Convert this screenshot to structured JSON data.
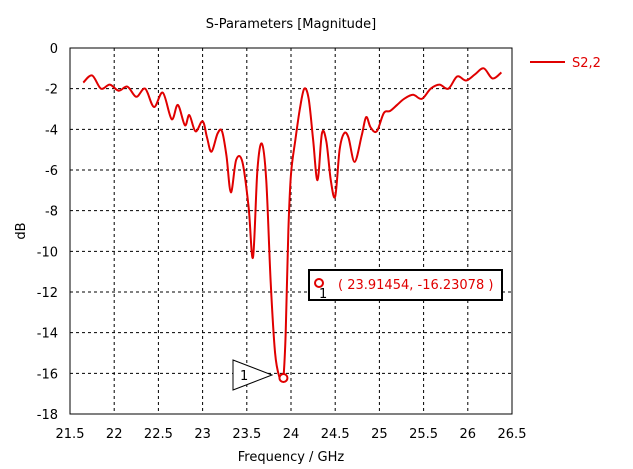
{
  "chart_data": {
    "type": "line",
    "title": "S-Parameters [Magnitude]",
    "xlabel": "Frequency / GHz",
    "ylabel": "dB",
    "xlim": [
      21.5,
      26.5
    ],
    "ylim": [
      -18,
      0
    ],
    "xticks": [
      "21.5",
      "22",
      "22.5",
      "23",
      "23.5",
      "24",
      "24.5",
      "25",
      "25.5",
      "26",
      "26.5"
    ],
    "yticks": [
      "0",
      "-2",
      "-4",
      "-6",
      "-8",
      "-10",
      "-12",
      "-14",
      "-16",
      "-18"
    ],
    "grid": true,
    "legend_position": "top-right",
    "series": [
      {
        "name": "S2,2",
        "color": "#e00000",
        "x": [
          21.65,
          21.75,
          21.85,
          21.95,
          22.05,
          22.15,
          22.25,
          22.35,
          22.45,
          22.55,
          22.65,
          22.72,
          22.8,
          22.85,
          22.92,
          23.0,
          23.05,
          23.1,
          23.17,
          23.22,
          23.27,
          23.32,
          23.38,
          23.45,
          23.52,
          23.57,
          23.62,
          23.67,
          23.72,
          23.77,
          23.82,
          23.87,
          23.9,
          23.91454,
          23.94,
          23.97,
          24.0,
          24.05,
          24.1,
          24.15,
          24.2,
          24.25,
          24.3,
          24.35,
          24.4,
          24.45,
          24.5,
          24.55,
          24.6,
          24.65,
          24.72,
          24.8,
          24.85,
          24.9,
          24.97,
          25.05,
          25.12,
          25.2,
          25.28,
          25.38,
          25.48,
          25.58,
          25.68,
          25.78,
          25.88,
          25.98,
          26.08,
          26.18,
          26.28,
          26.38
        ],
        "y": [
          -1.7,
          -1.35,
          -2.0,
          -1.8,
          -2.1,
          -1.9,
          -2.4,
          -2.0,
          -2.9,
          -2.2,
          -3.5,
          -2.8,
          -3.8,
          -3.3,
          -4.1,
          -3.6,
          -4.4,
          -5.1,
          -4.2,
          -4.1,
          -5.3,
          -7.1,
          -5.5,
          -5.6,
          -7.8,
          -10.3,
          -6.0,
          -4.7,
          -6.5,
          -11.5,
          -15.0,
          -16.2,
          -16.23,
          -16.23078,
          -14.0,
          -9.0,
          -6.2,
          -4.5,
          -3.0,
          -2.0,
          -2.5,
          -4.5,
          -6.5,
          -4.2,
          -4.6,
          -6.5,
          -7.3,
          -5.0,
          -4.2,
          -4.4,
          -5.6,
          -4.3,
          -3.4,
          -3.9,
          -4.1,
          -3.2,
          -3.1,
          -2.8,
          -2.5,
          -2.3,
          -2.5,
          -2.0,
          -1.8,
          -2.0,
          -1.4,
          -1.6,
          -1.3,
          -1.0,
          -1.5,
          -1.2
        ]
      }
    ],
    "marker": {
      "id": "1",
      "x": 23.91454,
      "y": -16.23078,
      "label": "( 23.91454, -16.23078 )"
    }
  }
}
